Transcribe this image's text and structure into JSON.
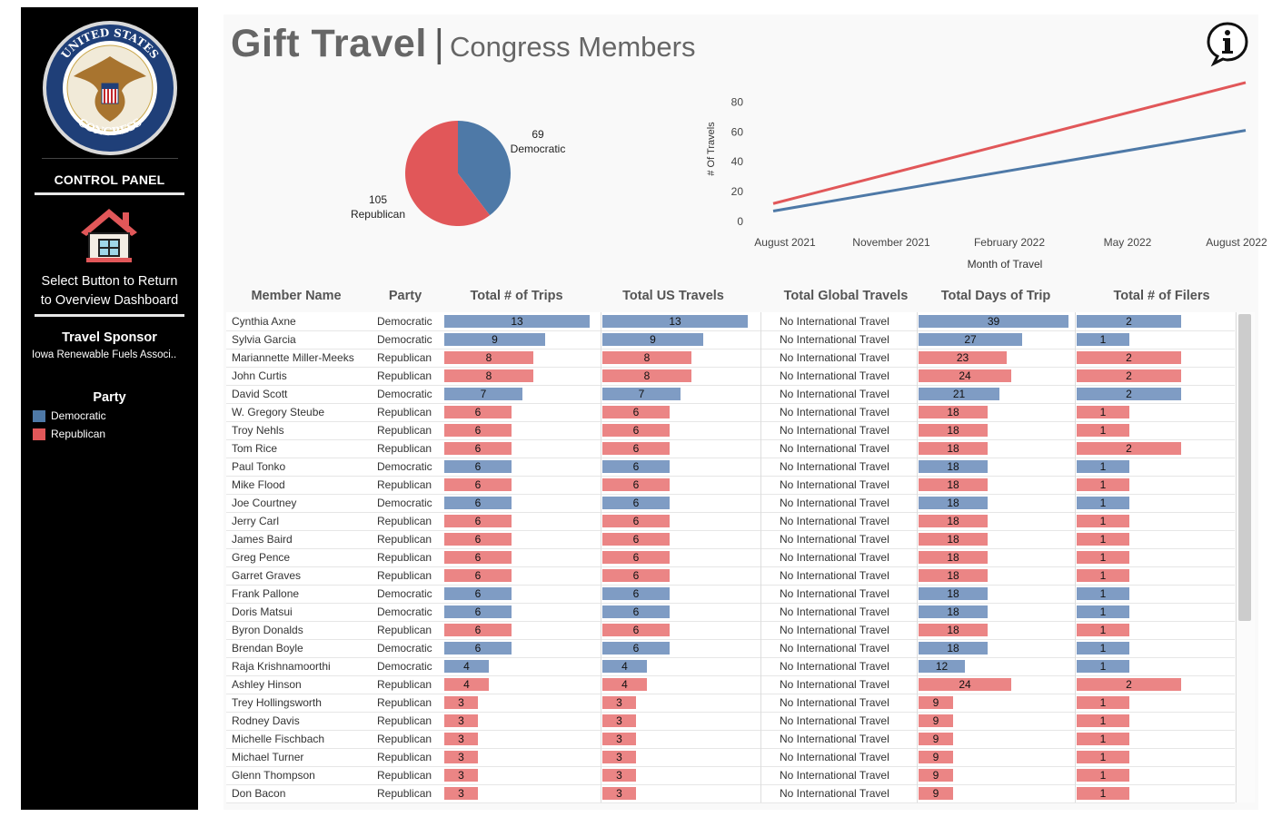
{
  "colors": {
    "democratic": "#4e79a7",
    "republican": "#e15759",
    "democratic_bar": "#7f9cc4",
    "republican_bar": "#eb8585"
  },
  "sidebar": {
    "seal_text": "UNITED STATES CONGRESS",
    "control_panel": "CONTROL PANEL",
    "home_icon": "house-icon",
    "return_text_1": "Select Button to Return",
    "return_text_2": "to Overview Dashboard",
    "sponsor_title": "Travel Sponsor",
    "sponsor_value": "Iowa Renewable Fuels Associ..",
    "party_title": "Party",
    "legend": [
      {
        "label": "Democratic",
        "color": "#4e79a7"
      },
      {
        "label": "Republican",
        "color": "#e15759"
      }
    ]
  },
  "header": {
    "title": "Gift Travel",
    "separator": "|",
    "subtitle": "Congress Members",
    "info_icon": "info-icon"
  },
  "chart_data": [
    {
      "type": "pie",
      "slices": [
        {
          "name": "Democratic",
          "value": 69,
          "color": "#4e79a7"
        },
        {
          "name": "Republican",
          "value": 105,
          "color": "#e15759"
        }
      ]
    },
    {
      "type": "line",
      "xlabel": "Month of Travel",
      "ylabel": "# Of Travels",
      "x_ticks": [
        "August 2021",
        "November 2021",
        "February 2022",
        "May 2022",
        "August 2022"
      ],
      "y_ticks": [
        0,
        20,
        40,
        60,
        80
      ],
      "ylim": [
        0,
        96
      ],
      "x": [
        "2021-08",
        "2022-08"
      ],
      "series": [
        {
          "name": "Republican",
          "color": "#e15759",
          "values": [
            12,
            93
          ]
        },
        {
          "name": "Democratic",
          "color": "#4e79a7",
          "values": [
            7,
            61
          ]
        }
      ],
      "grid": false
    }
  ],
  "table": {
    "headers": [
      "Member Name",
      "Party",
      "Total # of Trips",
      "Total US Travels",
      "Total Global Travels",
      "Total Days of Trip",
      "Total # of Filers"
    ],
    "rows": [
      {
        "name": "Cynthia Axne",
        "party": "Democratic",
        "trips": 13,
        "us": 13,
        "global": "No International Travel",
        "days": 39,
        "filers": 2
      },
      {
        "name": "Sylvia Garcia",
        "party": "Democratic",
        "trips": 9,
        "us": 9,
        "global": "No International Travel",
        "days": 27,
        "filers": 1
      },
      {
        "name": "Mariannette Miller-Meeks",
        "party": "Republican",
        "trips": 8,
        "us": 8,
        "global": "No International Travel",
        "days": 23,
        "filers": 2
      },
      {
        "name": "John Curtis",
        "party": "Republican",
        "trips": 8,
        "us": 8,
        "global": "No International Travel",
        "days": 24,
        "filers": 2
      },
      {
        "name": "David Scott",
        "party": "Democratic",
        "trips": 7,
        "us": 7,
        "global": "No International Travel",
        "days": 21,
        "filers": 2
      },
      {
        "name": "W. Gregory Steube",
        "party": "Republican",
        "trips": 6,
        "us": 6,
        "global": "No International Travel",
        "days": 18,
        "filers": 1
      },
      {
        "name": "Troy Nehls",
        "party": "Republican",
        "trips": 6,
        "us": 6,
        "global": "No International Travel",
        "days": 18,
        "filers": 1
      },
      {
        "name": "Tom Rice",
        "party": "Republican",
        "trips": 6,
        "us": 6,
        "global": "No International Travel",
        "days": 18,
        "filers": 2
      },
      {
        "name": "Paul Tonko",
        "party": "Democratic",
        "trips": 6,
        "us": 6,
        "global": "No International Travel",
        "days": 18,
        "filers": 1
      },
      {
        "name": "Mike Flood",
        "party": "Republican",
        "trips": 6,
        "us": 6,
        "global": "No International Travel",
        "days": 18,
        "filers": 1
      },
      {
        "name": "Joe Courtney",
        "party": "Democratic",
        "trips": 6,
        "us": 6,
        "global": "No International Travel",
        "days": 18,
        "filers": 1
      },
      {
        "name": "Jerry Carl",
        "party": "Republican",
        "trips": 6,
        "us": 6,
        "global": "No International Travel",
        "days": 18,
        "filers": 1
      },
      {
        "name": "James Baird",
        "party": "Republican",
        "trips": 6,
        "us": 6,
        "global": "No International Travel",
        "days": 18,
        "filers": 1
      },
      {
        "name": "Greg Pence",
        "party": "Republican",
        "trips": 6,
        "us": 6,
        "global": "No International Travel",
        "days": 18,
        "filers": 1
      },
      {
        "name": "Garret Graves",
        "party": "Republican",
        "trips": 6,
        "us": 6,
        "global": "No International Travel",
        "days": 18,
        "filers": 1
      },
      {
        "name": "Frank Pallone",
        "party": "Democratic",
        "trips": 6,
        "us": 6,
        "global": "No International Travel",
        "days": 18,
        "filers": 1
      },
      {
        "name": "Doris Matsui",
        "party": "Democratic",
        "trips": 6,
        "us": 6,
        "global": "No International Travel",
        "days": 18,
        "filers": 1
      },
      {
        "name": "Byron Donalds",
        "party": "Republican",
        "trips": 6,
        "us": 6,
        "global": "No International Travel",
        "days": 18,
        "filers": 1
      },
      {
        "name": "Brendan Boyle",
        "party": "Democratic",
        "trips": 6,
        "us": 6,
        "global": "No International Travel",
        "days": 18,
        "filers": 1
      },
      {
        "name": "Raja Krishnamoorthi",
        "party": "Democratic",
        "trips": 4,
        "us": 4,
        "global": "No International Travel",
        "days": 12,
        "filers": 1
      },
      {
        "name": "Ashley Hinson",
        "party": "Republican",
        "trips": 4,
        "us": 4,
        "global": "No International Travel",
        "days": 24,
        "filers": 2
      },
      {
        "name": "Trey Hollingsworth",
        "party": "Republican",
        "trips": 3,
        "us": 3,
        "global": "No International Travel",
        "days": 9,
        "filers": 1
      },
      {
        "name": "Rodney Davis",
        "party": "Republican",
        "trips": 3,
        "us": 3,
        "global": "No International Travel",
        "days": 9,
        "filers": 1
      },
      {
        "name": "Michelle Fischbach",
        "party": "Republican",
        "trips": 3,
        "us": 3,
        "global": "No International Travel",
        "days": 9,
        "filers": 1
      },
      {
        "name": "Michael Turner",
        "party": "Republican",
        "trips": 3,
        "us": 3,
        "global": "No International Travel",
        "days": 9,
        "filers": 1
      },
      {
        "name": "Glenn Thompson",
        "party": "Republican",
        "trips": 3,
        "us": 3,
        "global": "No International Travel",
        "days": 9,
        "filers": 1
      },
      {
        "name": "Don Bacon",
        "party": "Republican",
        "trips": 3,
        "us": 3,
        "global": "No International Travel",
        "days": 9,
        "filers": 1
      }
    ]
  }
}
